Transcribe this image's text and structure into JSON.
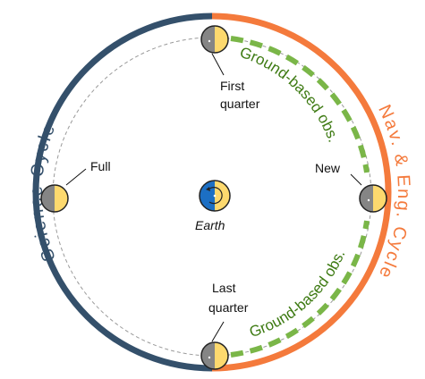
{
  "cycles": {
    "science": {
      "label": "Science Cycle",
      "color": "#34506b"
    },
    "nav_eng": {
      "label": "Nav. & Eng. Cycle",
      "color": "#f47a3c"
    }
  },
  "observation": {
    "label": "Ground-based obs.",
    "color": "#7ab648"
  },
  "phases": {
    "first_quarter": {
      "line1": "First",
      "line2": "quarter"
    },
    "full": {
      "label": "Full"
    },
    "new": {
      "label": "New"
    },
    "last_quarter": {
      "line1": "Last",
      "line2": "quarter"
    }
  },
  "earth": {
    "label": "Earth"
  },
  "colors": {
    "moon_lit": "#fdd96e",
    "moon_dark": "#858585",
    "earth_ocean": "#1c6fc4",
    "earth_land": "#fdd96e",
    "orbit": "#9a9a9a"
  }
}
